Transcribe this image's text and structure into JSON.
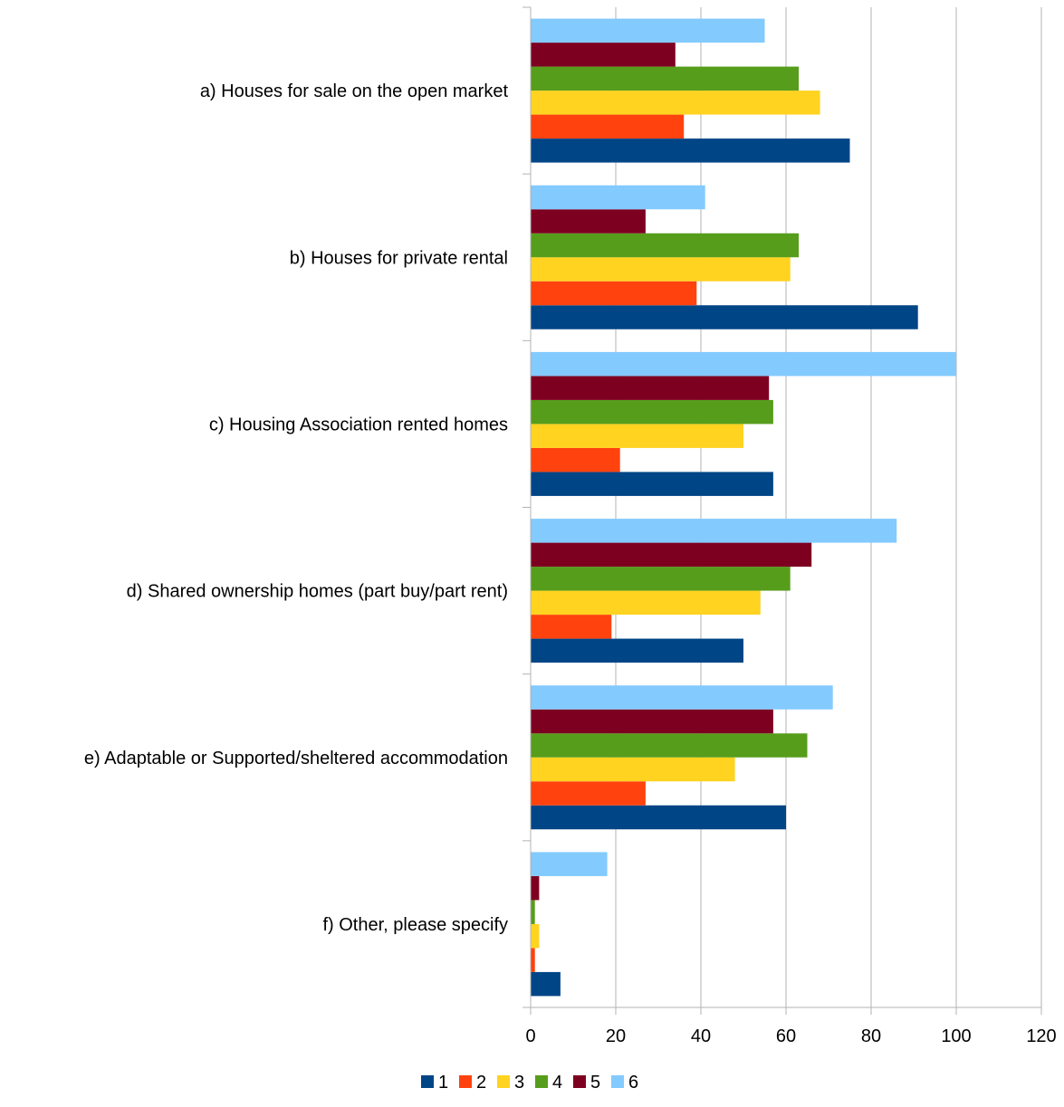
{
  "chart_data": {
    "type": "bar",
    "orientation": "horizontal",
    "title": "",
    "xlabel": "",
    "ylabel": "",
    "xlim": [
      0,
      120
    ],
    "x_ticks": [
      0,
      20,
      40,
      60,
      80,
      100,
      120
    ],
    "grid": true,
    "legend_position": "bottom",
    "categories": [
      "a) Houses for sale on the open market",
      "b) Houses for private rental",
      "c) Housing Association rented homes",
      "d) Shared ownership homes (part buy/part rent)",
      "e) Adaptable or Supported/sheltered accommodation",
      "f) Other, please specify"
    ],
    "series": [
      {
        "name": "1",
        "color": "#004586",
        "values": [
          75,
          91,
          57,
          50,
          60,
          7
        ]
      },
      {
        "name": "2",
        "color": "#ff420e",
        "values": [
          36,
          39,
          21,
          19,
          27,
          1
        ]
      },
      {
        "name": "3",
        "color": "#ffd320",
        "values": [
          68,
          61,
          50,
          54,
          48,
          2
        ]
      },
      {
        "name": "4",
        "color": "#579d1c",
        "values": [
          63,
          63,
          57,
          61,
          65,
          1
        ]
      },
      {
        "name": "5",
        "color": "#7e0021",
        "values": [
          34,
          27,
          56,
          66,
          57,
          2
        ]
      },
      {
        "name": "6",
        "color": "#83caff",
        "values": [
          55,
          41,
          100,
          86,
          71,
          18
        ]
      }
    ]
  }
}
